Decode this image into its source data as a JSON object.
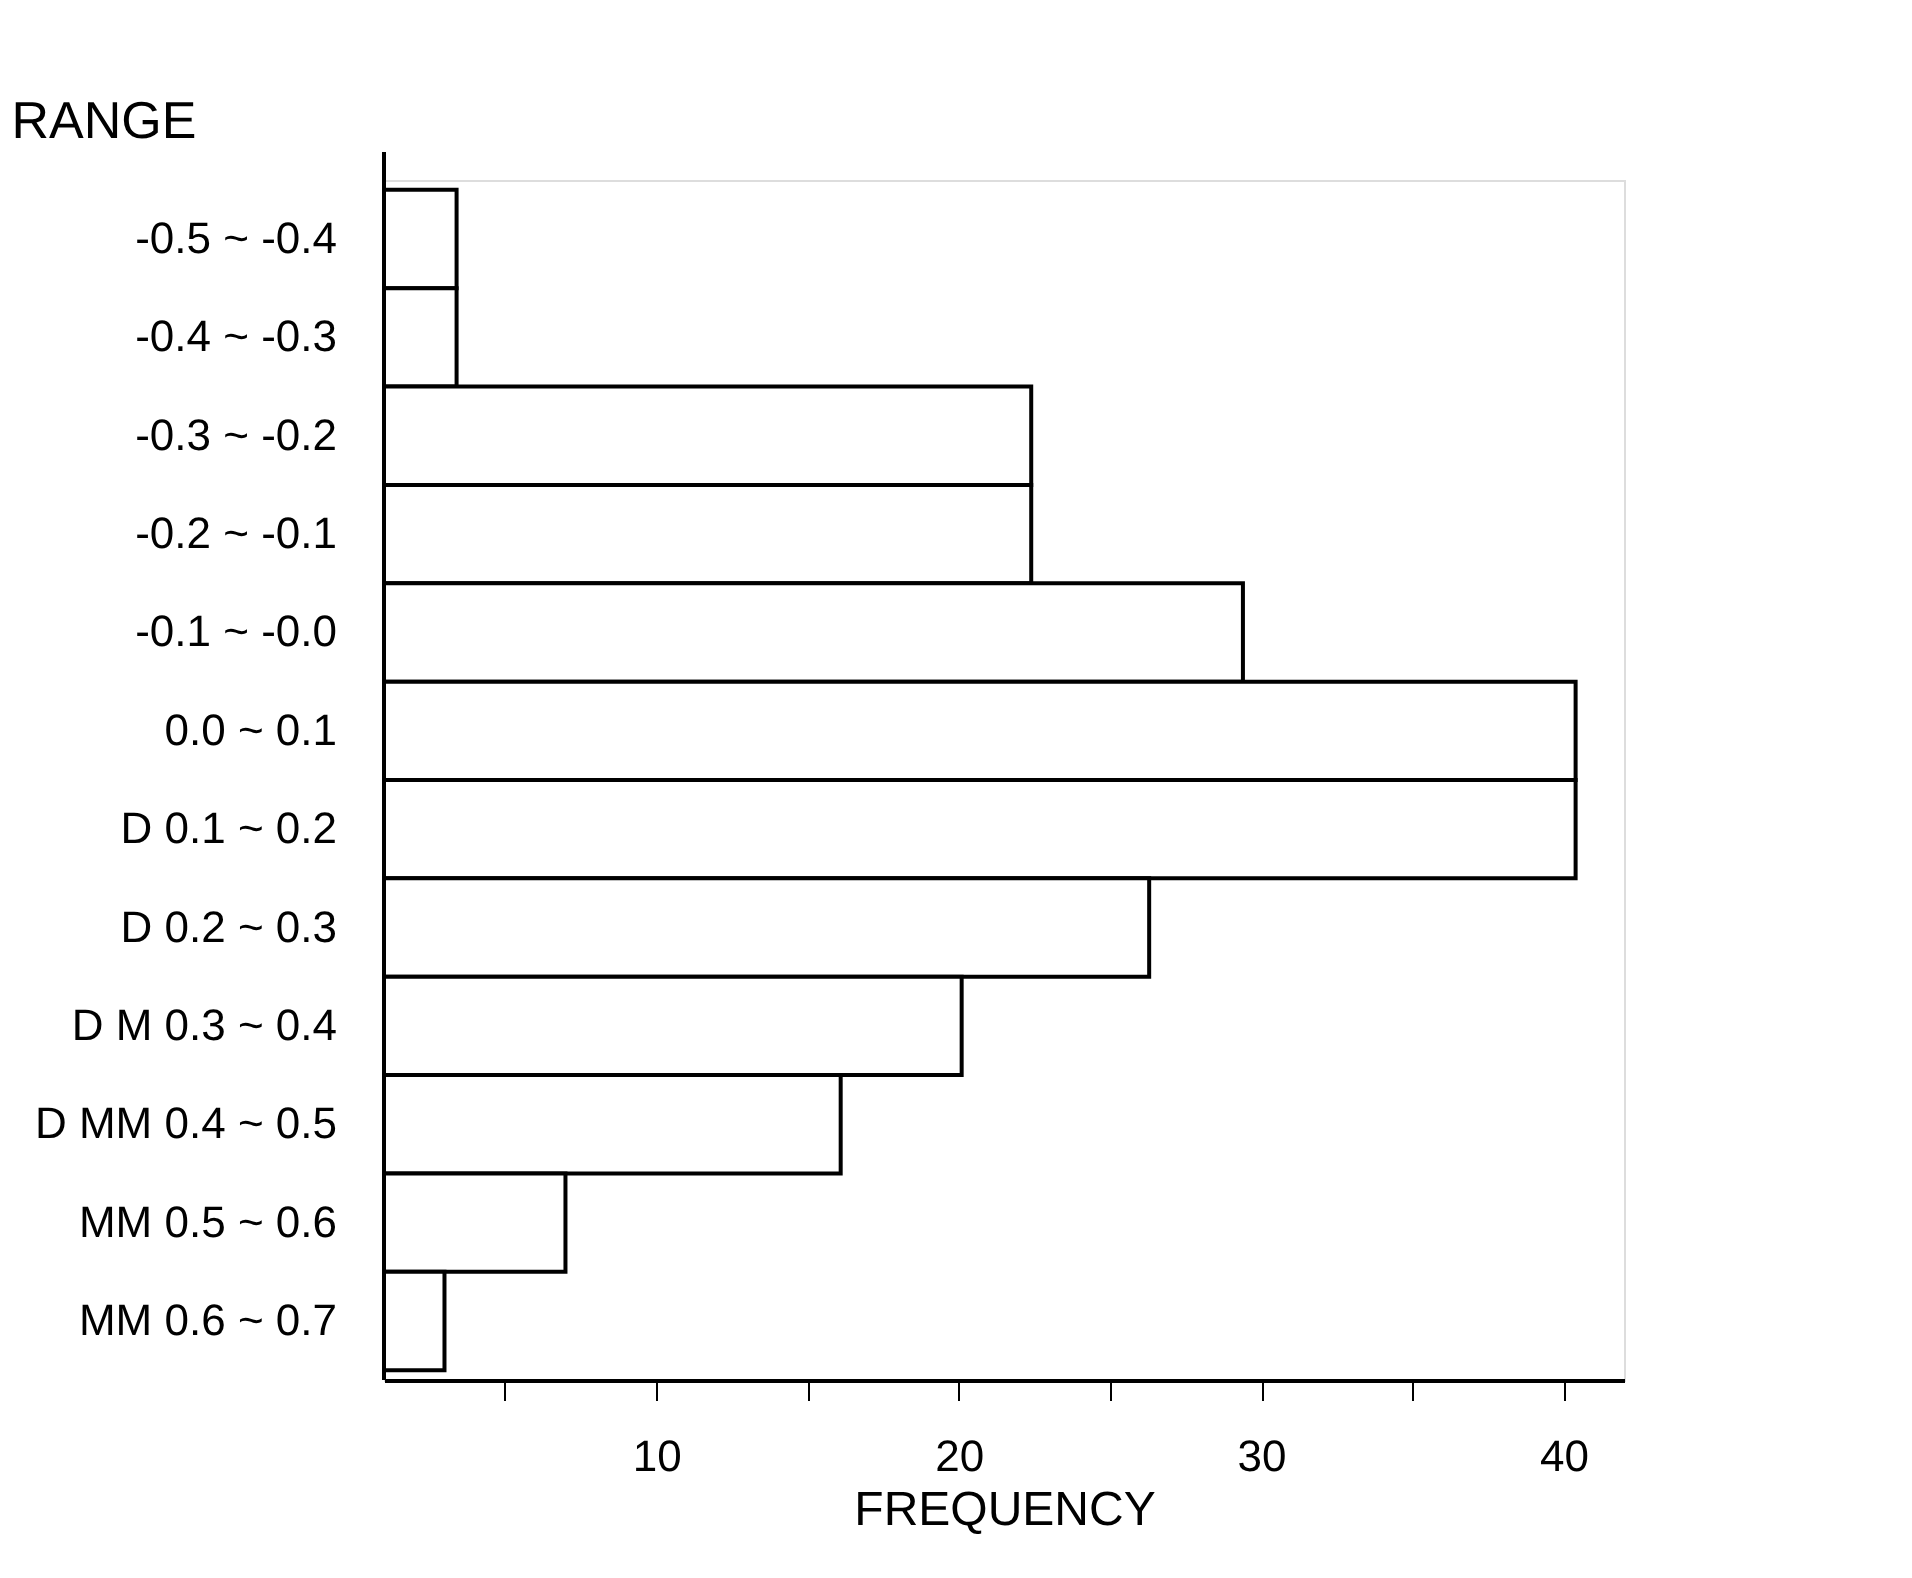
{
  "chart_data": {
    "type": "bar",
    "orientation": "horizontal",
    "categories": [
      "-0.5 ~ -0.4",
      "-0.4 ~ -0.3",
      "-0.3 ~ -0.2",
      "-0.2 ~ -0.1",
      "-0.1 ~ -0.0",
      "0.0 ~ 0.1",
      "D 0.1 ~ 0.2",
      "D 0.2 ~ 0.3",
      "D M 0.3 ~ 0.4",
      "D MM 0.4 ~ 0.5",
      "MM 0.5 ~ 0.6",
      "MM 0.6 ~ 0.7"
    ],
    "values": [
      3.4,
      3.4,
      22.4,
      22.4,
      29.4,
      40.4,
      40.4,
      26.3,
      20.1,
      16.1,
      7.0,
      3.0
    ],
    "color": "#ffffff",
    "xlabel": "FREQUENCY",
    "ylabel": "RANGE",
    "xlim": [
      1,
      42
    ],
    "xticks": [
      {
        "value": 5,
        "label": null
      },
      10,
      {
        "value": 15,
        "label": null
      },
      20,
      {
        "value": 25,
        "label": null
      },
      30,
      {
        "value": 35,
        "label": null
      },
      40
    ],
    "grid": false
  }
}
